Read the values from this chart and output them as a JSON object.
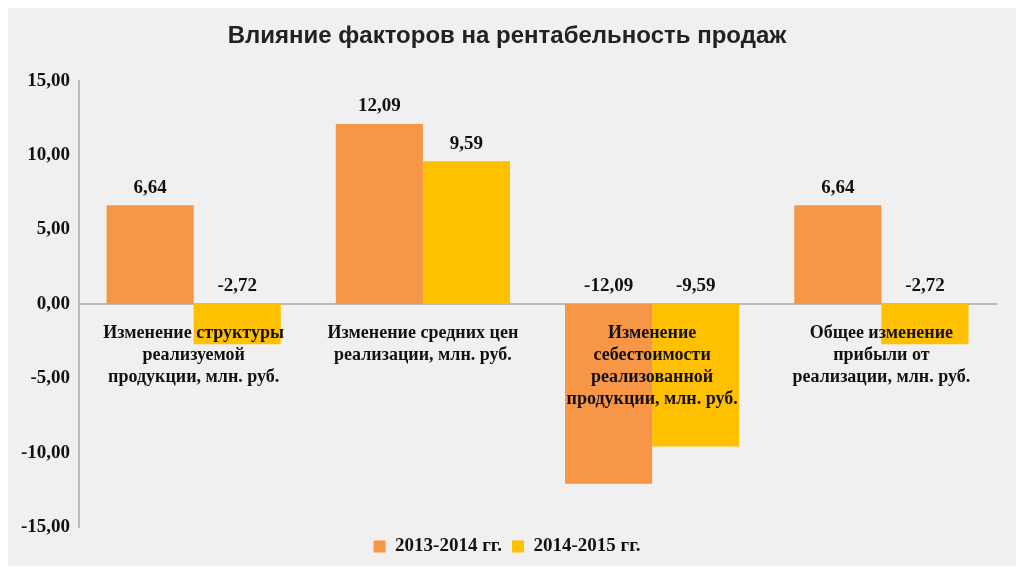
{
  "chart_data": {
    "type": "bar",
    "title": "Влияние факторов на рентабельность продаж",
    "categories": [
      "Изменение структуры реализуемой продукции, млн. руб.",
      "Изменение средних цен реализации, млн. руб.",
      "Изменение себестоимости реализованной продукции, млн. руб.",
      "Общее изменение прибыли от реализации, млн. руб."
    ],
    "series": [
      {
        "name": "2013-2014 гг.",
        "color": "#f79646",
        "values": [
          6.64,
          12.09,
          -12.09,
          6.64
        ],
        "value_labels": [
          "6,64",
          "12,09",
          "-12,09",
          "6,64"
        ]
      },
      {
        "name": "2014-2015 гг.",
        "color": "#ffc000",
        "values": [
          -2.72,
          9.59,
          -9.59,
          -2.72
        ],
        "value_labels": [
          "-2,72",
          "9,59",
          "-9,59",
          "-2,72"
        ]
      }
    ],
    "ylim": [
      -15,
      15
    ],
    "yticks": [
      {
        "value": -15,
        "label": "-15,00"
      },
      {
        "value": -10,
        "label": "-10,00"
      },
      {
        "value": -5,
        "label": "-5,00"
      },
      {
        "value": 0,
        "label": "0,00"
      },
      {
        "value": 5,
        "label": "5,00"
      },
      {
        "value": 10,
        "label": "10,00"
      },
      {
        "value": 15,
        "label": "15,00"
      }
    ],
    "grid": false,
    "legend": "bottom"
  }
}
